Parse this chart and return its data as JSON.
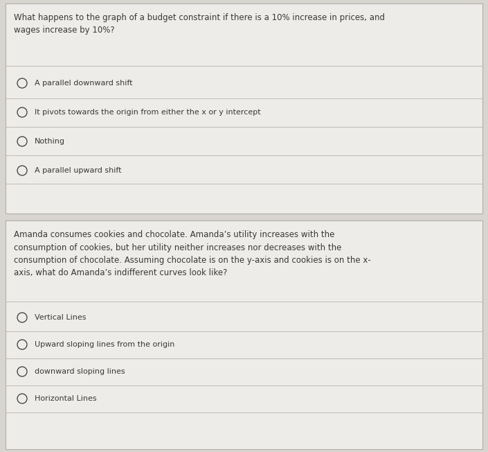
{
  "bg_color": "#d8d5d0",
  "box_bg": "#eeece8",
  "border_color": "#b0aea8",
  "question1": "What happens to the graph of a budget constraint if there is a 10% increase in prices, and\nwages increase by 10%?",
  "options1": [
    "A parallel downward shift",
    "It pivots towards the origin from either the x or y intercept",
    "Nothing",
    "A parallel upward shift"
  ],
  "question2": "Amanda consumes cookies and chocolate. Amanda’s utility increases with the\nconsumption of cookies, but her utility neither increases nor decreases with the\nconsumption of chocolate. Assuming chocolate is on the y-axis and cookies is on the x-\naxis, what do Amanda’s indifferent curves look like?",
  "options2": [
    "Vertical Lines",
    "Upward sloping lines from the origin",
    "downward sloping lines",
    "Horizontal Lines"
  ],
  "text_color": "#3a3835",
  "question_fontsize": 8.5,
  "option_fontsize": 8.0,
  "line_color": "#b8b5b0"
}
